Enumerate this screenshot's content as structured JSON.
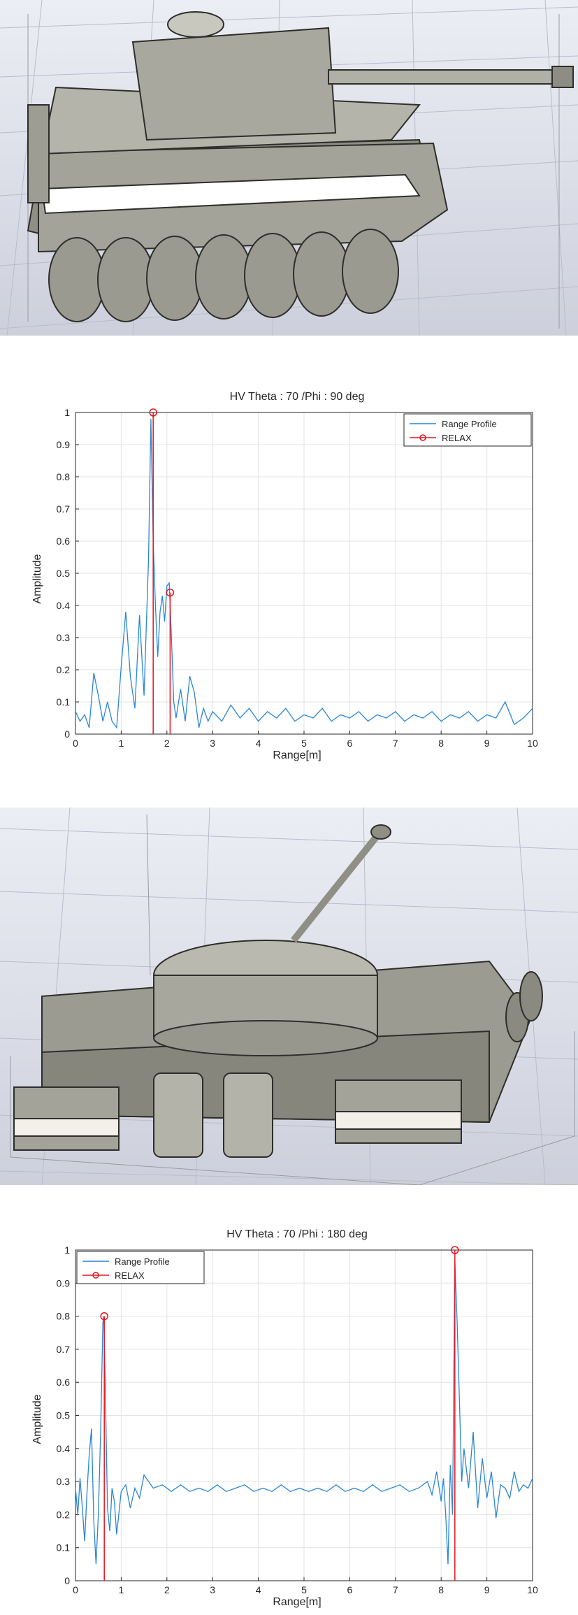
{
  "colors": {
    "range_profile": "#2a86d6",
    "relax": "#e8141e",
    "grid": "#e3e3e3",
    "axis": "#262626",
    "tank_body": "#aeaea6",
    "tank_dark": "#3b3b37",
    "floor": "#d7d7e3"
  },
  "renders": [
    {
      "view": "side"
    },
    {
      "view": "rear"
    }
  ],
  "chart_data": [
    {
      "type": "line",
      "title": "HV Theta : 70 /Phi : 90 deg",
      "xlabel": "Range[m]",
      "ylabel": "Amplitude",
      "xlim": [
        0,
        10
      ],
      "ylim": [
        0,
        1
      ],
      "xticks": [
        0,
        1,
        2,
        3,
        4,
        5,
        6,
        7,
        8,
        9,
        10
      ],
      "yticks": [
        0,
        0.1,
        0.2,
        0.3,
        0.4,
        0.5,
        0.6,
        0.7,
        0.8,
        0.9,
        1
      ],
      "grid": true,
      "legend_position": "top-right",
      "series": [
        {
          "name": "Range Profile",
          "style": "line",
          "x": [
            0.0,
            0.1,
            0.2,
            0.3,
            0.4,
            0.5,
            0.6,
            0.7,
            0.8,
            0.9,
            1.0,
            1.1,
            1.2,
            1.3,
            1.4,
            1.5,
            1.55,
            1.6,
            1.65,
            1.7,
            1.75,
            1.8,
            1.85,
            1.9,
            1.95,
            2.0,
            2.05,
            2.1,
            2.15,
            2.2,
            2.3,
            2.4,
            2.5,
            2.6,
            2.7,
            2.8,
            2.9,
            3.0,
            3.2,
            3.4,
            3.6,
            3.8,
            4.0,
            4.2,
            4.4,
            4.6,
            4.8,
            5.0,
            5.2,
            5.4,
            5.6,
            5.8,
            6.0,
            6.2,
            6.4,
            6.6,
            6.8,
            7.0,
            7.2,
            7.4,
            7.6,
            7.8,
            8.0,
            8.2,
            8.4,
            8.6,
            8.8,
            9.0,
            9.2,
            9.4,
            9.6,
            9.8,
            10.0
          ],
          "y": [
            0.07,
            0.04,
            0.06,
            0.02,
            0.19,
            0.12,
            0.04,
            0.1,
            0.04,
            0.02,
            0.21,
            0.38,
            0.18,
            0.08,
            0.37,
            0.12,
            0.34,
            0.55,
            0.98,
            0.6,
            0.4,
            0.24,
            0.38,
            0.43,
            0.35,
            0.46,
            0.47,
            0.3,
            0.1,
            0.05,
            0.14,
            0.04,
            0.18,
            0.13,
            0.02,
            0.08,
            0.04,
            0.07,
            0.04,
            0.09,
            0.05,
            0.08,
            0.04,
            0.07,
            0.05,
            0.08,
            0.04,
            0.06,
            0.05,
            0.08,
            0.04,
            0.06,
            0.05,
            0.07,
            0.04,
            0.06,
            0.05,
            0.07,
            0.04,
            0.06,
            0.05,
            0.07,
            0.04,
            0.06,
            0.05,
            0.07,
            0.04,
            0.06,
            0.05,
            0.1,
            0.03,
            0.05,
            0.08
          ]
        },
        {
          "name": "RELAX",
          "style": "stem",
          "x": [
            1.7,
            2.07
          ],
          "y": [
            1.0,
            0.44
          ]
        }
      ]
    },
    {
      "type": "line",
      "title": "HV Theta : 70 /Phi : 180 deg",
      "xlabel": "Range[m]",
      "ylabel": "Amplitude",
      "xlim": [
        0,
        10
      ],
      "ylim": [
        0,
        1
      ],
      "xticks": [
        0,
        1,
        2,
        3,
        4,
        5,
        6,
        7,
        8,
        9,
        10
      ],
      "yticks": [
        0,
        0.1,
        0.2,
        0.3,
        0.4,
        0.5,
        0.6,
        0.7,
        0.8,
        0.9,
        1
      ],
      "grid": true,
      "legend_position": "top-left",
      "series": [
        {
          "name": "Range Profile",
          "style": "line",
          "x": [
            0.0,
            0.05,
            0.1,
            0.15,
            0.2,
            0.25,
            0.3,
            0.35,
            0.4,
            0.45,
            0.5,
            0.55,
            0.6,
            0.62,
            0.65,
            0.7,
            0.75,
            0.8,
            0.85,
            0.9,
            1.0,
            1.1,
            1.2,
            1.3,
            1.4,
            1.5,
            1.7,
            1.9,
            2.1,
            2.3,
            2.5,
            2.7,
            2.9,
            3.1,
            3.3,
            3.5,
            3.7,
            3.9,
            4.1,
            4.3,
            4.5,
            4.7,
            4.9,
            5.1,
            5.3,
            5.5,
            5.7,
            5.9,
            6.1,
            6.3,
            6.5,
            6.7,
            6.9,
            7.1,
            7.3,
            7.5,
            7.7,
            7.8,
            7.9,
            8.0,
            8.05,
            8.1,
            8.15,
            8.2,
            8.25,
            8.3,
            8.35,
            8.4,
            8.45,
            8.5,
            8.6,
            8.7,
            8.8,
            8.9,
            9.0,
            9.1,
            9.2,
            9.3,
            9.4,
            9.5,
            9.6,
            9.7,
            9.8,
            9.9,
            10.0
          ],
          "y": [
            0.28,
            0.2,
            0.31,
            0.22,
            0.12,
            0.26,
            0.38,
            0.46,
            0.18,
            0.05,
            0.2,
            0.45,
            0.78,
            0.8,
            0.6,
            0.22,
            0.15,
            0.28,
            0.24,
            0.14,
            0.27,
            0.29,
            0.22,
            0.28,
            0.25,
            0.32,
            0.28,
            0.29,
            0.27,
            0.29,
            0.27,
            0.28,
            0.27,
            0.29,
            0.27,
            0.28,
            0.29,
            0.27,
            0.28,
            0.27,
            0.29,
            0.27,
            0.28,
            0.27,
            0.28,
            0.27,
            0.29,
            0.27,
            0.28,
            0.27,
            0.29,
            0.27,
            0.28,
            0.29,
            0.27,
            0.28,
            0.3,
            0.26,
            0.33,
            0.24,
            0.31,
            0.2,
            0.05,
            0.35,
            0.2,
            0.97,
            0.78,
            0.54,
            0.3,
            0.4,
            0.28,
            0.45,
            0.22,
            0.37,
            0.25,
            0.33,
            0.19,
            0.29,
            0.28,
            0.25,
            0.33,
            0.27,
            0.29,
            0.28,
            0.31
          ]
        },
        {
          "name": "RELAX",
          "style": "stem",
          "x": [
            0.63,
            8.3
          ],
          "y": [
            0.8,
            1.0
          ]
        }
      ]
    }
  ]
}
